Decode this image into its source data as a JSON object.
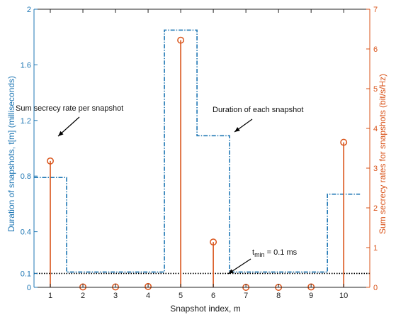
{
  "chart_data": {
    "type": "line",
    "title": "",
    "xlabel": "Snapshot index, m",
    "ylabel_left": "Duration of snapshots, t[m] (milliseconds)",
    "ylabel_right": "Sum secrecy rates for snapshots (bit/s/Hz)",
    "x_ticks": [
      "1",
      "2",
      "3",
      "4",
      "5",
      "6",
      "7",
      "8",
      "9",
      "10"
    ],
    "y_left_ticks": [
      {
        "v": 0,
        "label": "0"
      },
      {
        "v": 0.1,
        "label": "0.1"
      },
      {
        "v": 0.4,
        "label": "0.4"
      },
      {
        "v": 0.8,
        "label": "0.8"
      },
      {
        "v": 1.2,
        "label": "1.2"
      },
      {
        "v": 1.6,
        "label": "1.6"
      },
      {
        "v": 2,
        "label": "2"
      }
    ],
    "y_right_ticks": [
      "0",
      "1",
      "2",
      "3",
      "4",
      "5",
      "6",
      "7"
    ],
    "xlim": [
      0.5,
      10.8
    ],
    "ylim_left": [
      0,
      2
    ],
    "ylim_right": [
      0,
      7
    ],
    "colors": {
      "duration": "#1f77b4",
      "rate": "#d95319",
      "threshold": "#000000"
    },
    "series": [
      {
        "name": "Duration of each snapshot",
        "axis": "left",
        "style": "stairs-dashdot",
        "x": [
          1,
          2,
          3,
          4,
          5,
          6,
          7,
          8,
          9,
          10
        ],
        "values": [
          0.79,
          0.11,
          0.11,
          0.11,
          1.85,
          1.09,
          0.11,
          0.11,
          0.11,
          0.67
        ]
      },
      {
        "name": "Sum secrecy rate per snapshot",
        "axis": "right",
        "style": "stem",
        "x": [
          1,
          2,
          3,
          4,
          5,
          6,
          7,
          8,
          9,
          10
        ],
        "values": [
          3.18,
          0.01,
          0.01,
          0.02,
          6.22,
          1.14,
          0.0,
          0.0,
          0.01,
          3.65
        ]
      }
    ],
    "threshold": {
      "value": 0.1
    },
    "annotations": {
      "rate_label": "Sum secrecy rate per snapshot",
      "duration_label": "Duration of each snapshot",
      "tmin_main": "t",
      "tmin_sub": "min",
      "tmin_rest": " = 0.1 ms"
    }
  }
}
